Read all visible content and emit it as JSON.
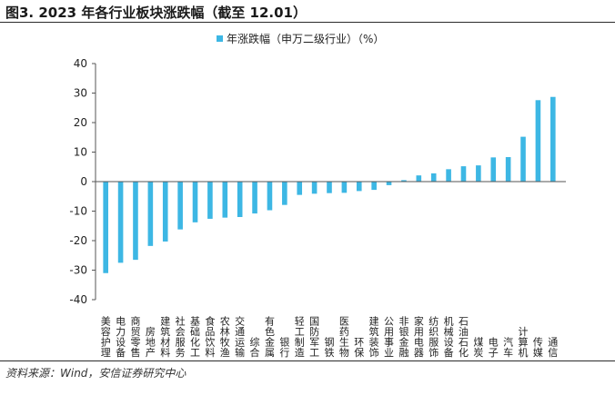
{
  "title": "图3. 2023 年各行业板块涨跌幅（截至 12.01）",
  "source": "资料来源：Wind，安信证券研究中心",
  "colors": {
    "bar": "#3db7e4",
    "axis": "#555555",
    "text": "#222222"
  },
  "chart_data": {
    "type": "bar",
    "legend": "年涨跌幅（申万二级行业）（%）",
    "ylim": [
      -40,
      40
    ],
    "yticks": [
      -40,
      -30,
      -20,
      -10,
      0,
      10,
      20,
      30,
      40
    ],
    "categories": [
      "美容护理",
      "电力设备",
      "商贸零售",
      "房地产",
      "建筑材料",
      "社会服务",
      "基础化工",
      "食品饮料",
      "农林牧渔",
      "交通运输",
      "综合",
      "有色金属",
      "银行",
      "轻工制造",
      "国防军工",
      "钢铁",
      "医药生物",
      "环保",
      "建筑装饰",
      "公用事业",
      "非银金融",
      "家用电器",
      "纺织服饰",
      "机械设备",
      "石油石化",
      "煤炭",
      "电子",
      "汽车",
      "计算机",
      "传媒",
      "通信"
    ],
    "values": [
      -31.0,
      -27.5,
      -26.5,
      -21.8,
      -20.3,
      -16.2,
      -13.8,
      -12.6,
      -12.2,
      -12.0,
      -10.8,
      -9.7,
      -7.9,
      -4.5,
      -4.1,
      -3.9,
      -3.8,
      -3.2,
      -2.8,
      -1.2,
      0.5,
      2.1,
      2.8,
      4.2,
      5.2,
      5.5,
      8.2,
      8.3,
      15.2,
      27.6,
      28.7
    ]
  }
}
